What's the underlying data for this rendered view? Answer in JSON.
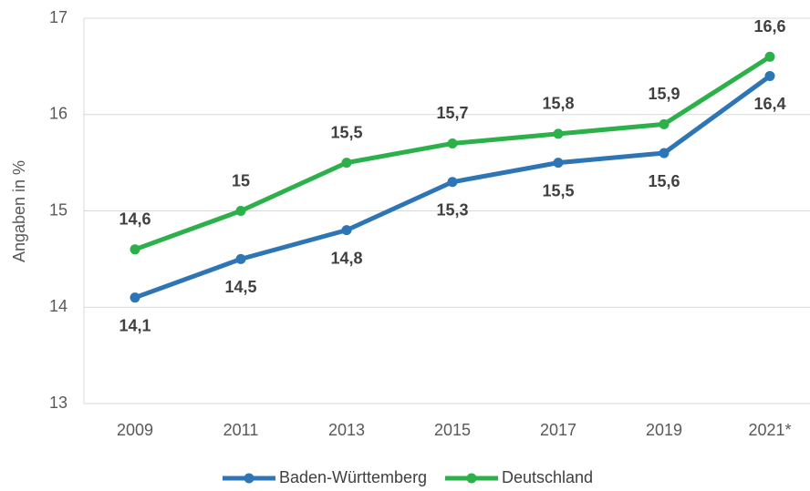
{
  "chart_data": {
    "type": "line",
    "y_label": "Angaben in %",
    "categories": [
      "2009",
      "2011",
      "2013",
      "2015",
      "2017",
      "2019",
      "2021*"
    ],
    "series": [
      {
        "name": "Baden-Württemberg",
        "color": "#2e75b6",
        "values": [
          14.1,
          14.5,
          14.8,
          15.3,
          15.5,
          15.6,
          16.4
        ],
        "value_labels": [
          "14,1",
          "14,5",
          "14,8",
          "15,3",
          "15,5",
          "15,6",
          "16,4"
        ]
      },
      {
        "name": "Deutschland",
        "color": "#2bb04a",
        "values": [
          14.6,
          15,
          15.5,
          15.7,
          15.8,
          15.9,
          16.6
        ],
        "value_labels": [
          "14,6",
          "15",
          "15,5",
          "15,7",
          "15,8",
          "15,9",
          "16,6"
        ]
      }
    ],
    "ylim": [
      13,
      17
    ],
    "yticks": [
      13,
      14,
      15,
      16,
      17
    ],
    "grid": true,
    "legend": "bottom"
  }
}
